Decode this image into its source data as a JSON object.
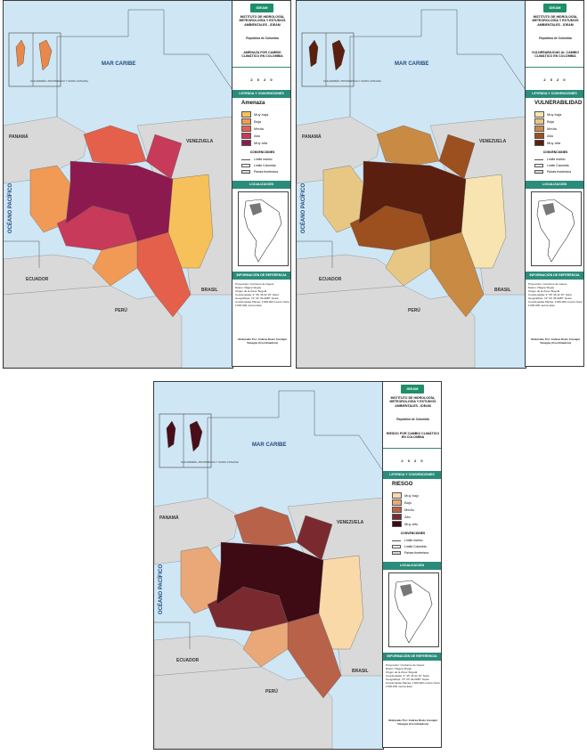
{
  "panels": [
    {
      "title": "AMENAZA POR CAMBIO CLIMÁTICO EN COLOMBIA",
      "legend_title": "Amenaza",
      "inset_fill": "#e8894a",
      "classes": [
        {
          "label": "Muy baja",
          "color": "#f6c15a"
        },
        {
          "label": "Baja",
          "color": "#f09a55"
        },
        {
          "label": "Media",
          "color": "#e4604a"
        },
        {
          "label": "Alta",
          "color": "#c73a5a"
        },
        {
          "label": "Muy alta",
          "color": "#8c1a4f"
        }
      ]
    },
    {
      "title": "VULNERABILIDAD AL CAMBIO CLIMÁTICO EN COLOMBIA",
      "legend_title": "VULNERABILIDAD",
      "inset_fill": "#5a1f0e",
      "classes": [
        {
          "label": "Muy baja",
          "color": "#f7e4b0"
        },
        {
          "label": "Baja",
          "color": "#e8c784"
        },
        {
          "label": "Media",
          "color": "#c98a44"
        },
        {
          "label": "Alta",
          "color": "#9c4f1f"
        },
        {
          "label": "Muy alta",
          "color": "#5a1f0e"
        }
      ]
    },
    {
      "title": "RIESGO POR CAMBIO CLIMÁTICO EN COLOMBIA",
      "legend_title": "RIESGO",
      "inset_fill": "#4a0d1a",
      "classes": [
        {
          "label": "Muy bajo",
          "color": "#f9d9a8"
        },
        {
          "label": "Bajo",
          "color": "#eaa878"
        },
        {
          "label": "Medio",
          "color": "#b8624a"
        },
        {
          "label": "Alto",
          "color": "#7a2a2e"
        },
        {
          "label": "Muy alto",
          "color": "#3e0a14"
        }
      ]
    }
  ],
  "common": {
    "institute": "INSTITUTO DE HIDROLOGÍA, METEOROLOGÍA Y ESTUDIOS AMBIENTALES - IDEAM",
    "republic": "República de Colombia",
    "logo": "IDEAM",
    "year": "2 0 2 0",
    "legend_bar": "LEYENDA Y CONVENCIONES",
    "conventions": "CONVENCIONES",
    "conv_items": [
      "Límite marino",
      "Límite Colombia",
      "Países fronterizos"
    ],
    "location_bar": "LOCALIZACIÓN",
    "ref_bar": "INFORMACIÓN DE REFERENCIA",
    "ref_text": [
      "Proyección: Conforme de Gauss",
      "Datum: Magna Sirgas",
      "Origen de la Zona: Bogotá",
      "Coordenadas: 4° 35' 46.32 15\" Norte",
      "Geográficas: 74° 04' 39.0285\" Oeste",
      "Coordenadas Planas: 1'000.000 metros Norte 1'000.000 metros Este"
    ],
    "made_by": "Elaborado Por: Andrea Rocío Carvajal Vanegas (Coordinadora)"
  },
  "places": {
    "mar_caribe": "MAR CARIBE",
    "panama": "PANAMÁ",
    "venezuela": "VENEZUELA",
    "oceano": "OCÉANO PACÍFICO",
    "ecuador": "ECUADOR",
    "peru": "PERÚ",
    "brasil": "BRASIL",
    "san_andres": "SAN ANDRÉS, PROVIDENCIA Y SANTA CATALINA"
  }
}
